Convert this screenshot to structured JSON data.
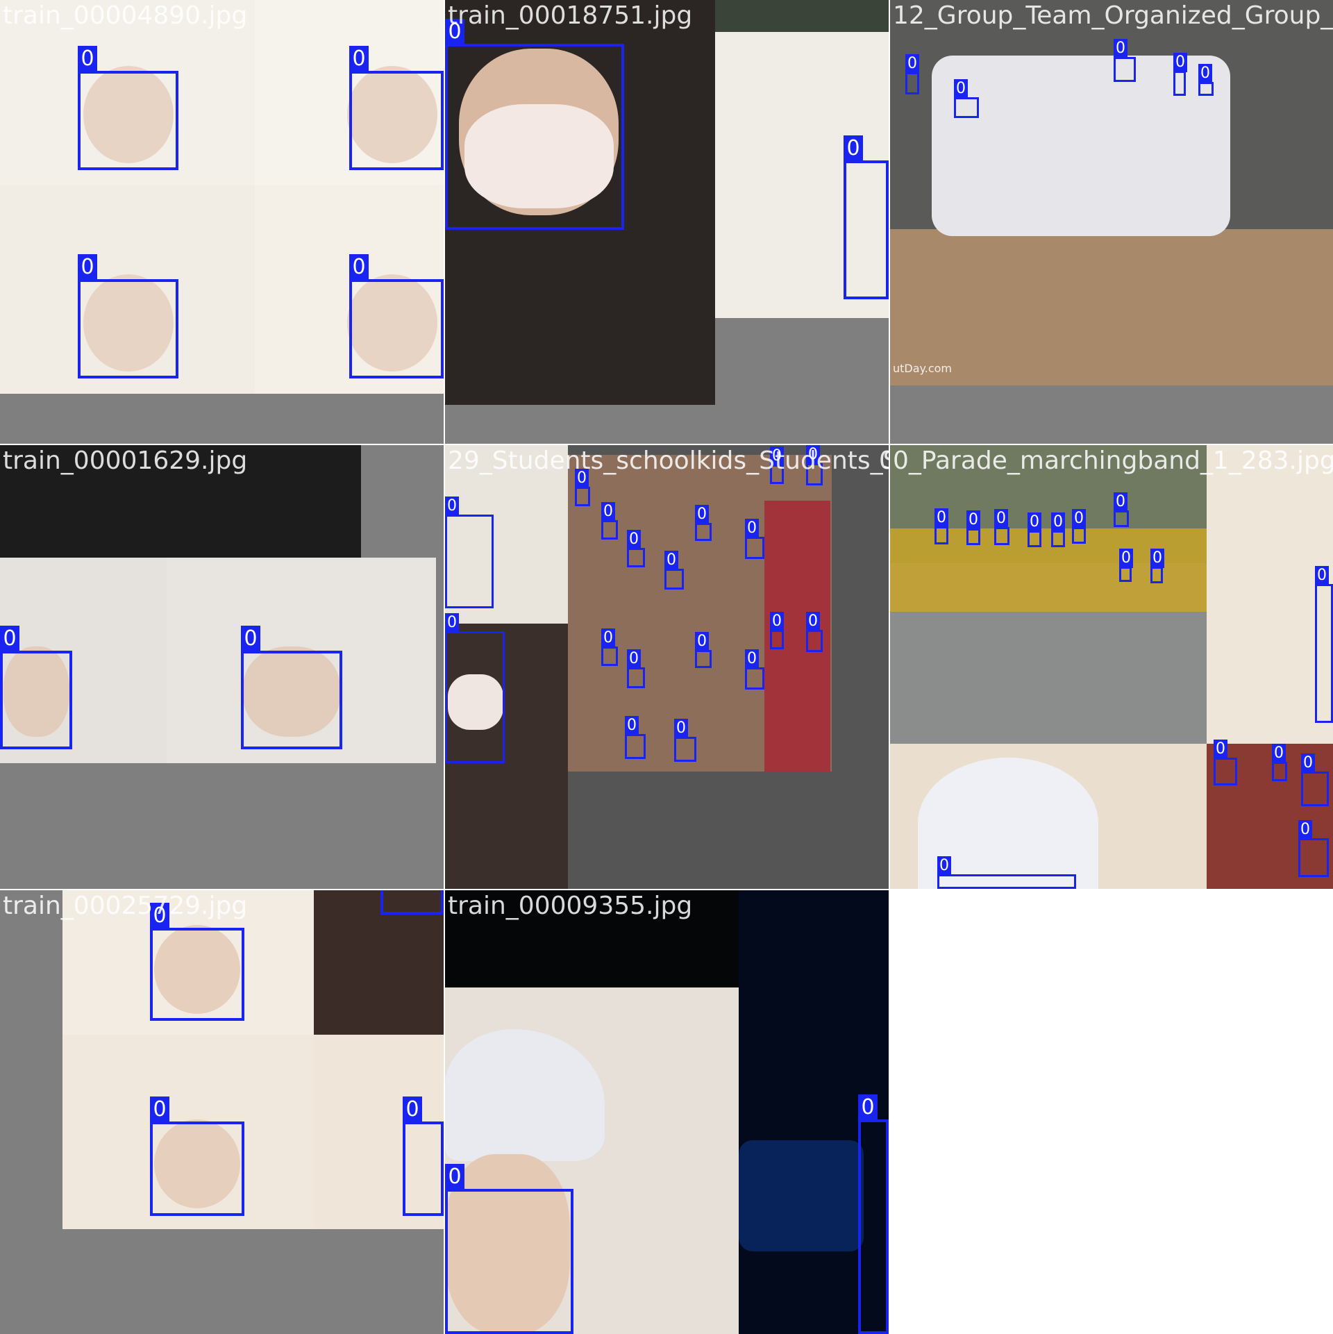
{
  "mosaic": {
    "tiles": [
      {
        "title": "train_00004890.jpg",
        "class_label": "0"
      },
      {
        "title": "train_00018751.jpg",
        "class_label": "0"
      },
      {
        "title": "12_Group_Team_Organized_Group_",
        "class_label": "0",
        "watermark": "utDay.com"
      },
      {
        "title": "train_00001629.jpg",
        "class_label": "0"
      },
      {
        "title": "29_Students_schoolkids_Students_Sc",
        "overlap_title": "0_Parade_marchingband_1_283.jpg",
        "class_label": "0"
      },
      {
        "title": "0_Parade_marchingband_1_283.jpg",
        "class_label": "0"
      },
      {
        "title": "train_00025729.jpg",
        "class_label": "0"
      },
      {
        "title": "train_00009355.jpg",
        "class_label": "0"
      }
    ]
  },
  "colors": {
    "box": "#1a24f0",
    "pad": "#7f7f7f",
    "dark_pad": "#555555"
  }
}
